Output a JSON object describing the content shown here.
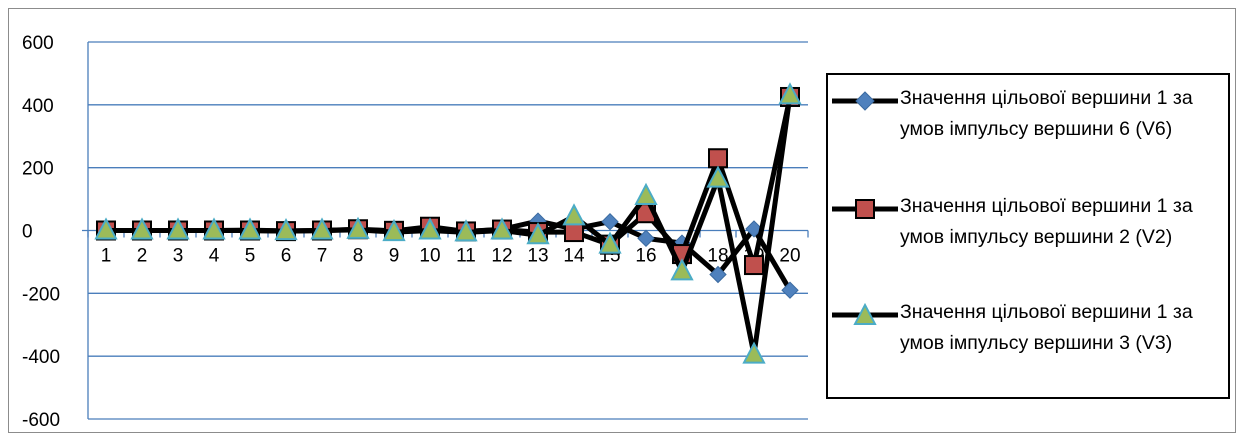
{
  "chart_data": {
    "type": "line",
    "title": "",
    "xlabel": "",
    "ylabel": "",
    "categories": [
      "1",
      "2",
      "3",
      "4",
      "5",
      "6",
      "7",
      "8",
      "9",
      "10",
      "11",
      "12",
      "13",
      "14",
      "15",
      "16",
      "17",
      "18",
      "19",
      "20"
    ],
    "ylim": [
      -600,
      600
    ],
    "yticks": [
      "600",
      "400",
      "200",
      "0",
      "-200",
      "-400",
      "-600"
    ],
    "grid": "horizontal",
    "legend_position": "right",
    "series": [
      {
        "name": "Значення цільової вершини 1 за умов імпульсу вершини 6 (V6)",
        "marker": "diamond",
        "marker_color": "#4f81bd",
        "line_color": "#000000",
        "values": [
          0,
          0,
          0,
          0,
          1,
          -1,
          0,
          3,
          -2,
          8,
          -3,
          4,
          30,
          5,
          28,
          -25,
          -40,
          -140,
          5,
          -190
        ]
      },
      {
        "name": "Значення цільової вершини 1 за умов імпульсу вершини 2 (V2)",
        "marker": "square",
        "marker_color": "#c0504d",
        "line_color": "#000000",
        "values": [
          0,
          0,
          0,
          0,
          0,
          -2,
          0,
          4,
          -1,
          12,
          -3,
          3,
          -5,
          -5,
          -45,
          55,
          -75,
          230,
          -110,
          425
        ]
      },
      {
        "name": "Значення цільової вершини 1 за умов імпульсу вершини 3 (V3)",
        "marker": "triangle",
        "marker_color": "#9bbb59",
        "line_color": "#000000",
        "values": [
          0,
          0,
          0,
          0,
          0,
          -2,
          0,
          2,
          -5,
          0,
          -6,
          0,
          -15,
          45,
          -45,
          110,
          -130,
          165,
          -395,
          430
        ]
      }
    ]
  }
}
